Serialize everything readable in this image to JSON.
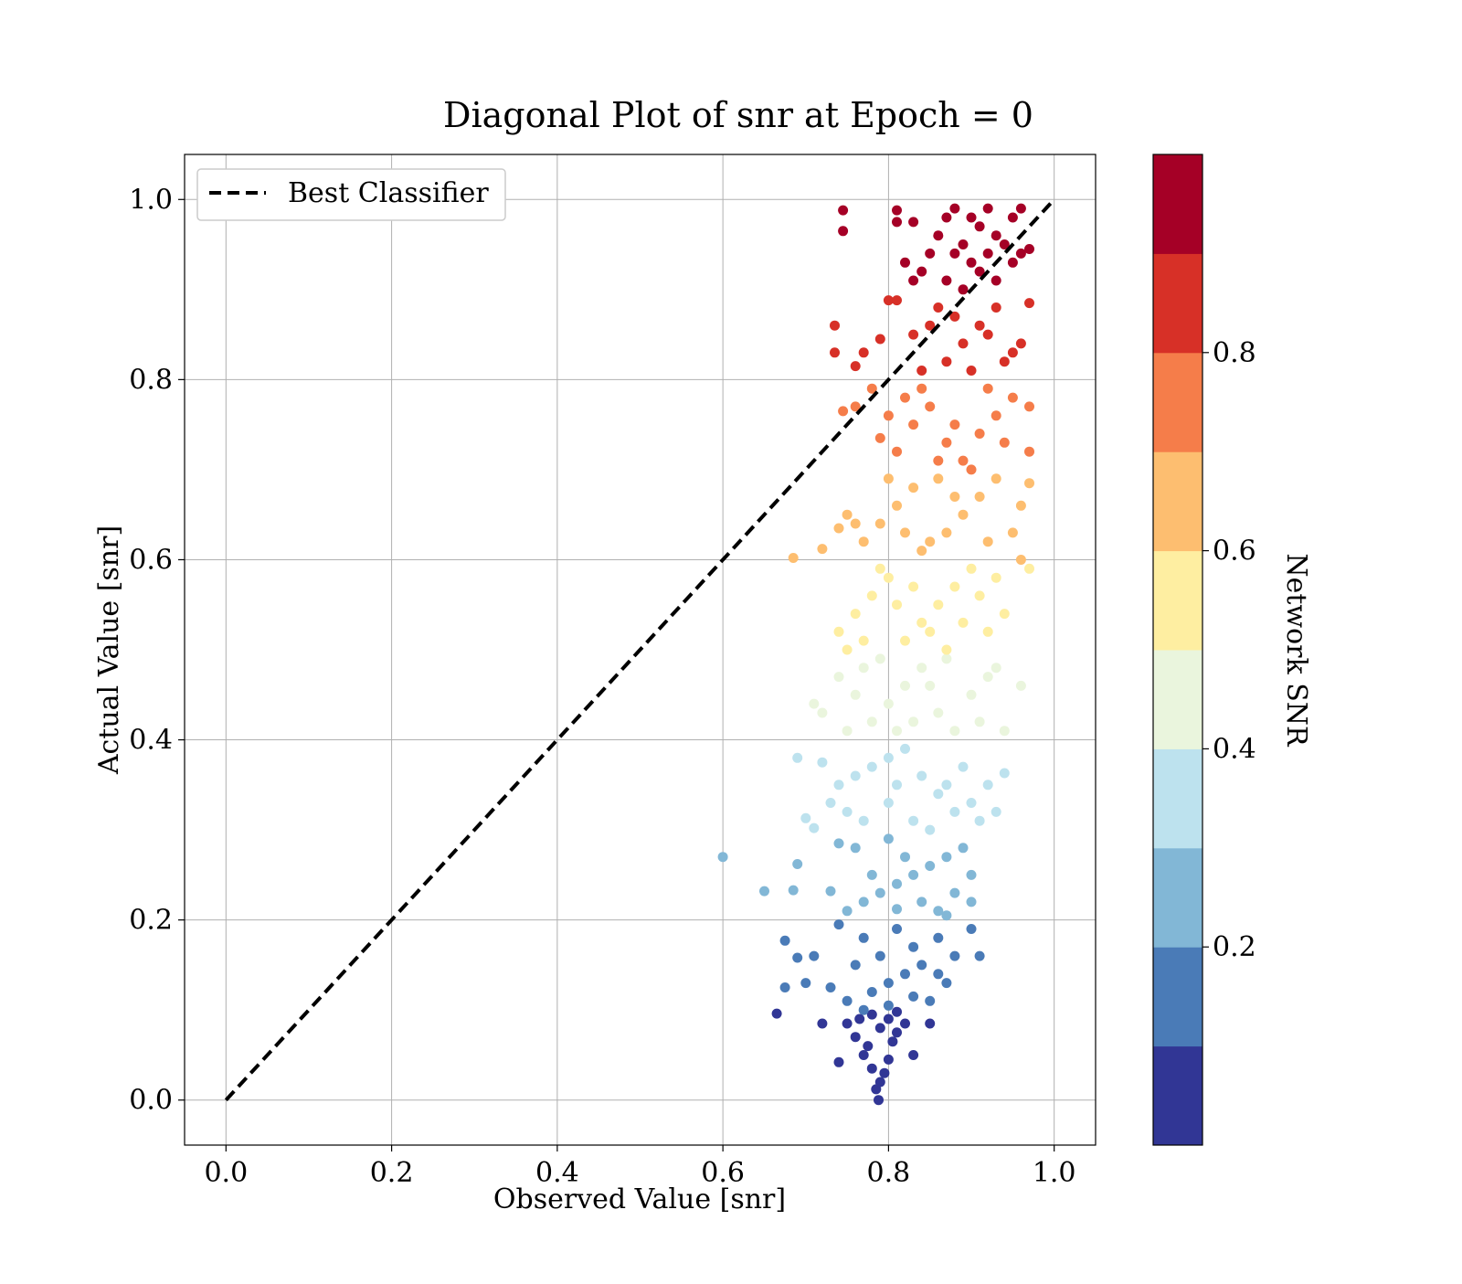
{
  "chart_data": {
    "type": "scatter",
    "title": "Diagonal Plot of snr at Epoch = 0",
    "xlabel": "Observed Value [snr]",
    "ylabel": "Actual Value [snr]",
    "xlim": [
      -0.05,
      1.05
    ],
    "ylim": [
      -0.05,
      1.05
    ],
    "xticks": [
      "0.0",
      "0.2",
      "0.4",
      "0.6",
      "0.8",
      "1.0"
    ],
    "yticks": [
      "0.0",
      "0.2",
      "0.4",
      "0.6",
      "0.8",
      "1.0"
    ],
    "grid": true,
    "legend": {
      "position": "upper-left",
      "entries": [
        "Best Classifier"
      ]
    },
    "reference_line": {
      "name": "Best Classifier",
      "style": "dashed",
      "color": "#000000",
      "x": [
        0,
        1
      ],
      "y": [
        0,
        1
      ]
    },
    "colorbar": {
      "label": "Network SNR",
      "range": [
        0,
        1
      ],
      "ticks": [
        "0.2",
        "0.4",
        "0.6",
        "0.8"
      ],
      "bins": [
        {
          "from": 0.0,
          "to": 0.1,
          "color": "#313695"
        },
        {
          "from": 0.1,
          "to": 0.2,
          "color": "#4a7bb7"
        },
        {
          "from": 0.2,
          "to": 0.3,
          "color": "#82b7d6"
        },
        {
          "from": 0.3,
          "to": 0.4,
          "color": "#bde2ee"
        },
        {
          "from": 0.4,
          "to": 0.5,
          "color": "#eaf5dd"
        },
        {
          "from": 0.5,
          "to": 0.6,
          "color": "#feeea1"
        },
        {
          "from": 0.6,
          "to": 0.7,
          "color": "#fdbe70"
        },
        {
          "from": 0.7,
          "to": 0.8,
          "color": "#f57d4a"
        },
        {
          "from": 0.8,
          "to": 0.9,
          "color": "#d73027"
        },
        {
          "from": 0.9,
          "to": 1.0,
          "color": "#a50026"
        }
      ]
    },
    "series": [
      {
        "points": [
          [
            0.788,
            0.0
          ],
          [
            0.785,
            0.012
          ],
          [
            0.79,
            0.02
          ],
          [
            0.795,
            0.03
          ],
          [
            0.78,
            0.035
          ],
          [
            0.8,
            0.045
          ],
          [
            0.77,
            0.05
          ],
          [
            0.775,
            0.06
          ],
          [
            0.805,
            0.065
          ],
          [
            0.76,
            0.07
          ],
          [
            0.81,
            0.075
          ],
          [
            0.79,
            0.08
          ],
          [
            0.75,
            0.085
          ],
          [
            0.82,
            0.085
          ],
          [
            0.765,
            0.09
          ],
          [
            0.8,
            0.09
          ],
          [
            0.74,
            0.042
          ],
          [
            0.72,
            0.085
          ],
          [
            0.665,
            0.096
          ],
          [
            0.85,
            0.085
          ],
          [
            0.83,
            0.05
          ],
          [
            0.78,
            0.095
          ],
          [
            0.77,
            0.1
          ],
          [
            0.81,
            0.098
          ],
          [
            0.75,
            0.11
          ],
          [
            0.78,
            0.12
          ],
          [
            0.8,
            0.13
          ],
          [
            0.82,
            0.14
          ],
          [
            0.84,
            0.15
          ],
          [
            0.76,
            0.15
          ],
          [
            0.79,
            0.16
          ],
          [
            0.83,
            0.17
          ],
          [
            0.86,
            0.18
          ],
          [
            0.73,
            0.125
          ],
          [
            0.7,
            0.13
          ],
          [
            0.675,
            0.125
          ],
          [
            0.675,
            0.177
          ],
          [
            0.69,
            0.158
          ],
          [
            0.71,
            0.16
          ],
          [
            0.88,
            0.16
          ],
          [
            0.9,
            0.19
          ],
          [
            0.91,
            0.16
          ],
          [
            0.85,
            0.11
          ],
          [
            0.87,
            0.13
          ],
          [
            0.81,
            0.19
          ],
          [
            0.77,
            0.18
          ],
          [
            0.74,
            0.195
          ],
          [
            0.86,
            0.14
          ],
          [
            0.8,
            0.105
          ],
          [
            0.83,
            0.115
          ],
          [
            0.6,
            0.27
          ],
          [
            0.65,
            0.232
          ],
          [
            0.685,
            0.233
          ],
          [
            0.69,
            0.262
          ],
          [
            0.73,
            0.232
          ],
          [
            0.75,
            0.21
          ],
          [
            0.77,
            0.22
          ],
          [
            0.79,
            0.23
          ],
          [
            0.81,
            0.24
          ],
          [
            0.83,
            0.25
          ],
          [
            0.85,
            0.26
          ],
          [
            0.87,
            0.27
          ],
          [
            0.89,
            0.28
          ],
          [
            0.76,
            0.28
          ],
          [
            0.8,
            0.29
          ],
          [
            0.84,
            0.22
          ],
          [
            0.86,
            0.21
          ],
          [
            0.88,
            0.23
          ],
          [
            0.9,
            0.25
          ],
          [
            0.82,
            0.27
          ],
          [
            0.78,
            0.25
          ],
          [
            0.74,
            0.285
          ],
          [
            0.9,
            0.22
          ],
          [
            0.87,
            0.205
          ],
          [
            0.81,
            0.212
          ],
          [
            0.7,
            0.313
          ],
          [
            0.71,
            0.302
          ],
          [
            0.73,
            0.33
          ],
          [
            0.74,
            0.35
          ],
          [
            0.76,
            0.36
          ],
          [
            0.78,
            0.37
          ],
          [
            0.8,
            0.38
          ],
          [
            0.82,
            0.39
          ],
          [
            0.84,
            0.36
          ],
          [
            0.86,
            0.34
          ],
          [
            0.88,
            0.32
          ],
          [
            0.9,
            0.33
          ],
          [
            0.92,
            0.35
          ],
          [
            0.94,
            0.363
          ],
          [
            0.69,
            0.38
          ],
          [
            0.72,
            0.375
          ],
          [
            0.75,
            0.32
          ],
          [
            0.77,
            0.31
          ],
          [
            0.8,
            0.33
          ],
          [
            0.83,
            0.31
          ],
          [
            0.85,
            0.3
          ],
          [
            0.87,
            0.35
          ],
          [
            0.89,
            0.37
          ],
          [
            0.91,
            0.31
          ],
          [
            0.93,
            0.32
          ],
          [
            0.81,
            0.35
          ],
          [
            0.71,
            0.44
          ],
          [
            0.72,
            0.43
          ],
          [
            0.74,
            0.47
          ],
          [
            0.76,
            0.45
          ],
          [
            0.78,
            0.42
          ],
          [
            0.8,
            0.44
          ],
          [
            0.82,
            0.46
          ],
          [
            0.84,
            0.48
          ],
          [
            0.86,
            0.43
          ],
          [
            0.88,
            0.41
          ],
          [
            0.9,
            0.45
          ],
          [
            0.92,
            0.47
          ],
          [
            0.94,
            0.41
          ],
          [
            0.96,
            0.46
          ],
          [
            0.75,
            0.41
          ],
          [
            0.79,
            0.49
          ],
          [
            0.83,
            0.42
          ],
          [
            0.87,
            0.49
          ],
          [
            0.91,
            0.42
          ],
          [
            0.93,
            0.48
          ],
          [
            0.85,
            0.46
          ],
          [
            0.81,
            0.41
          ],
          [
            0.77,
            0.48
          ],
          [
            0.74,
            0.52
          ],
          [
            0.76,
            0.54
          ],
          [
            0.78,
            0.56
          ],
          [
            0.8,
            0.58
          ],
          [
            0.82,
            0.51
          ],
          [
            0.84,
            0.53
          ],
          [
            0.86,
            0.55
          ],
          [
            0.88,
            0.57
          ],
          [
            0.9,
            0.59
          ],
          [
            0.92,
            0.52
          ],
          [
            0.94,
            0.54
          ],
          [
            0.96,
            0.6
          ],
          [
            0.97,
            0.59
          ],
          [
            0.75,
            0.5
          ],
          [
            0.77,
            0.51
          ],
          [
            0.79,
            0.59
          ],
          [
            0.83,
            0.57
          ],
          [
            0.87,
            0.5
          ],
          [
            0.91,
            0.56
          ],
          [
            0.93,
            0.58
          ],
          [
            0.85,
            0.52
          ],
          [
            0.81,
            0.55
          ],
          [
            0.89,
            0.53
          ],
          [
            0.685,
            0.602
          ],
          [
            0.72,
            0.612
          ],
          [
            0.74,
            0.635
          ],
          [
            0.75,
            0.65
          ],
          [
            0.77,
            0.62
          ],
          [
            0.79,
            0.64
          ],
          [
            0.81,
            0.66
          ],
          [
            0.83,
            0.68
          ],
          [
            0.85,
            0.62
          ],
          [
            0.87,
            0.63
          ],
          [
            0.89,
            0.65
          ],
          [
            0.91,
            0.67
          ],
          [
            0.93,
            0.69
          ],
          [
            0.95,
            0.63
          ],
          [
            0.97,
            0.685
          ],
          [
            0.76,
            0.64
          ],
          [
            0.8,
            0.69
          ],
          [
            0.84,
            0.61
          ],
          [
            0.88,
            0.67
          ],
          [
            0.92,
            0.62
          ],
          [
            0.96,
            0.66
          ],
          [
            0.82,
            0.63
          ],
          [
            0.86,
            0.69
          ],
          [
            0.745,
            0.765
          ],
          [
            0.76,
            0.77
          ],
          [
            0.78,
            0.79
          ],
          [
            0.79,
            0.735
          ],
          [
            0.81,
            0.72
          ],
          [
            0.83,
            0.75
          ],
          [
            0.85,
            0.77
          ],
          [
            0.87,
            0.73
          ],
          [
            0.89,
            0.71
          ],
          [
            0.91,
            0.74
          ],
          [
            0.93,
            0.76
          ],
          [
            0.95,
            0.78
          ],
          [
            0.97,
            0.72
          ],
          [
            0.97,
            0.77
          ],
          [
            0.8,
            0.76
          ],
          [
            0.84,
            0.79
          ],
          [
            0.88,
            0.75
          ],
          [
            0.92,
            0.79
          ],
          [
            0.86,
            0.71
          ],
          [
            0.9,
            0.7
          ],
          [
            0.82,
            0.78
          ],
          [
            0.94,
            0.73
          ],
          [
            0.735,
            0.86
          ],
          [
            0.735,
            0.83
          ],
          [
            0.76,
            0.815
          ],
          [
            0.77,
            0.83
          ],
          [
            0.79,
            0.845
          ],
          [
            0.8,
            0.888
          ],
          [
            0.81,
            0.888
          ],
          [
            0.83,
            0.85
          ],
          [
            0.85,
            0.86
          ],
          [
            0.87,
            0.82
          ],
          [
            0.89,
            0.84
          ],
          [
            0.91,
            0.86
          ],
          [
            0.93,
            0.88
          ],
          [
            0.95,
            0.83
          ],
          [
            0.97,
            0.885
          ],
          [
            0.88,
            0.87
          ],
          [
            0.9,
            0.81
          ],
          [
            0.92,
            0.85
          ],
          [
            0.94,
            0.82
          ],
          [
            0.96,
            0.84
          ],
          [
            0.86,
            0.88
          ],
          [
            0.84,
            0.81
          ],
          [
            0.745,
            0.988
          ],
          [
            0.745,
            0.965
          ],
          [
            0.81,
            0.988
          ],
          [
            0.81,
            0.975
          ],
          [
            0.83,
            0.975
          ],
          [
            0.82,
            0.93
          ],
          [
            0.83,
            0.91
          ],
          [
            0.84,
            0.92
          ],
          [
            0.85,
            0.94
          ],
          [
            0.86,
            0.96
          ],
          [
            0.87,
            0.98
          ],
          [
            0.88,
            0.99
          ],
          [
            0.89,
            0.95
          ],
          [
            0.9,
            0.93
          ],
          [
            0.91,
            0.97
          ],
          [
            0.92,
            0.99
          ],
          [
            0.93,
            0.91
          ],
          [
            0.94,
            0.95
          ],
          [
            0.95,
            0.98
          ],
          [
            0.96,
            0.94
          ],
          [
            0.97,
            0.945
          ],
          [
            0.96,
            0.99
          ],
          [
            0.87,
            0.91
          ],
          [
            0.89,
            0.9
          ],
          [
            0.91,
            0.92
          ],
          [
            0.93,
            0.96
          ],
          [
            0.95,
            0.93
          ],
          [
            0.88,
            0.94
          ],
          [
            0.9,
            0.98
          ],
          [
            0.92,
            0.94
          ]
        ]
      }
    ]
  }
}
